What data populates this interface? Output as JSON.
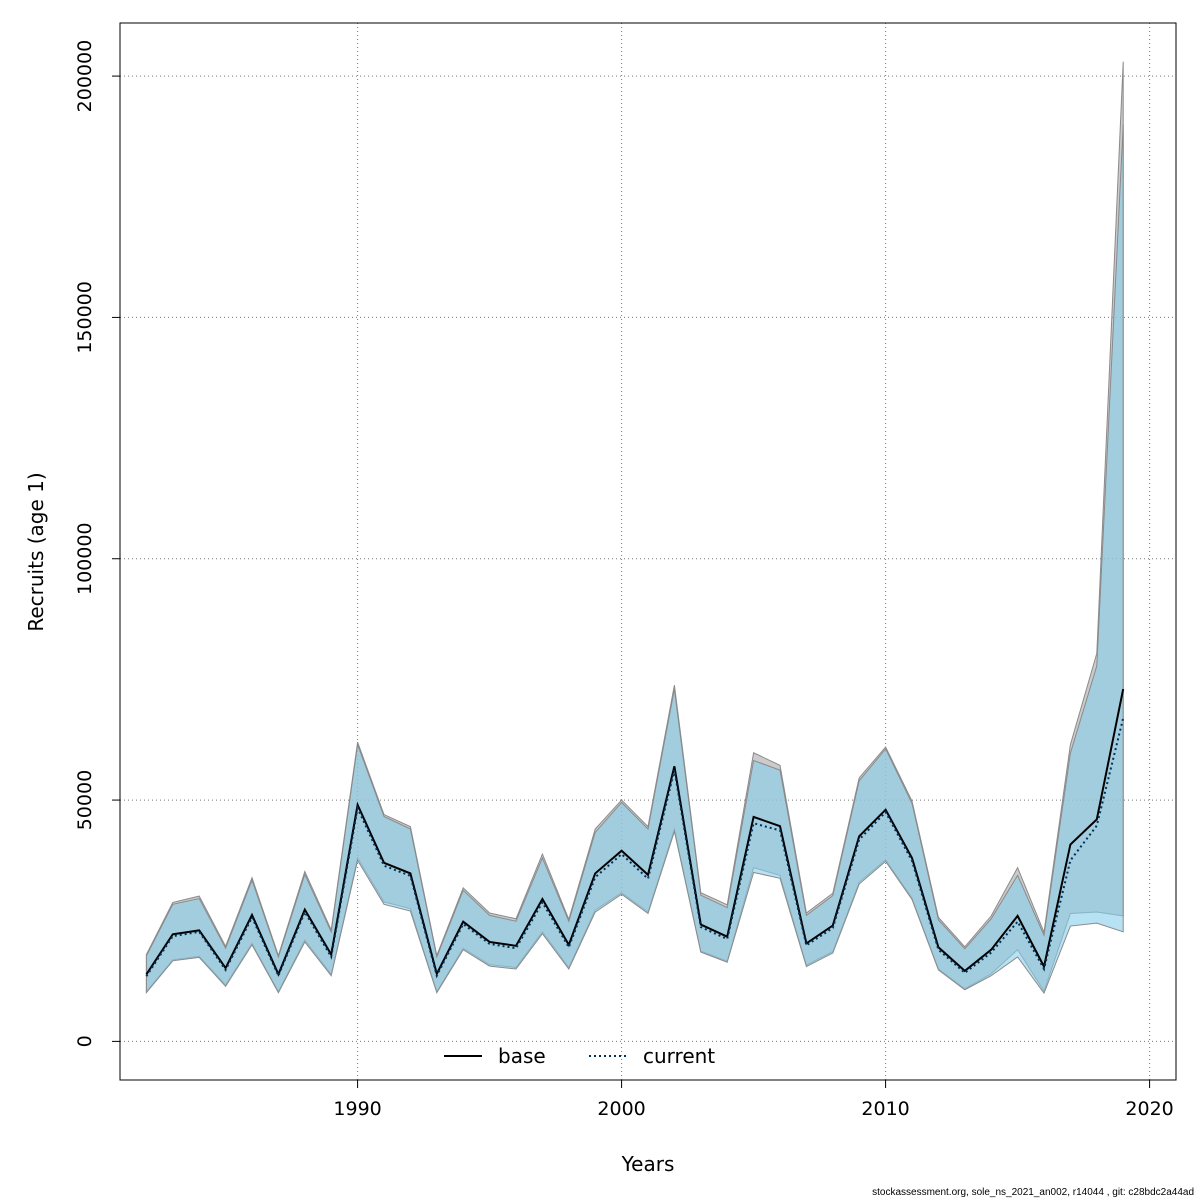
{
  "chart_data": {
    "type": "line",
    "xlabel": "Years",
    "ylabel": "Recruits (age 1)",
    "xlim": [
      1981,
      2021
    ],
    "ylim": [
      -8000,
      211000
    ],
    "xticks": [
      1990,
      2000,
      2010,
      2020
    ],
    "yticks": [
      0,
      50000,
      100000,
      150000,
      200000
    ],
    "grid": true,
    "legend_position": "bottom-center",
    "x": [
      1982,
      1983,
      1984,
      1985,
      1986,
      1987,
      1988,
      1989,
      1990,
      1991,
      1992,
      1993,
      1994,
      1995,
      1996,
      1997,
      1998,
      1999,
      2000,
      2001,
      2002,
      2003,
      2004,
      2005,
      2006,
      2007,
      2008,
      2009,
      2010,
      2011,
      2012,
      2013,
      2014,
      2015,
      2016,
      2017,
      2018,
      2019
    ],
    "series": [
      {
        "name": "base",
        "line_style": "solid",
        "line_color": "#000000",
        "band_color": "#a9a9a9",
        "values": [
          13900,
          22200,
          23000,
          15200,
          26200,
          13900,
          27300,
          18000,
          49000,
          37000,
          34800,
          14000,
          24800,
          20600,
          19800,
          29500,
          20000,
          34800,
          39500,
          34500,
          57000,
          24200,
          21700,
          46500,
          44600,
          20300,
          24000,
          42500,
          48000,
          38000,
          19500,
          14600,
          19000,
          26000,
          15500,
          40800,
          46000,
          73000
        ],
        "lower": [
          10300,
          16900,
          17600,
          11700,
          20300,
          10300,
          21000,
          13900,
          38000,
          28900,
          27500,
          10300,
          19300,
          15900,
          15300,
          22700,
          15300,
          27200,
          30800,
          26800,
          44000,
          18700,
          16600,
          36000,
          34400,
          15800,
          18600,
          33000,
          37600,
          29700,
          15000,
          10900,
          14000,
          19000,
          10400,
          26500,
          26800,
          26000
        ],
        "upper": [
          18000,
          28800,
          30100,
          19700,
          33900,
          17800,
          35200,
          23100,
          62000,
          47000,
          44500,
          17800,
          31800,
          26600,
          25400,
          38800,
          25300,
          44000,
          50000,
          44500,
          73800,
          30800,
          28300,
          59800,
          57200,
          26600,
          30700,
          54600,
          61000,
          49800,
          25700,
          19600,
          26000,
          36000,
          22600,
          61500,
          80400,
          203000
        ]
      },
      {
        "name": "current",
        "line_style": "dotted",
        "line_color": "#00305a",
        "band_color": "#87ceeb",
        "values": [
          13500,
          21800,
          22700,
          14800,
          25700,
          13600,
          26800,
          17500,
          48300,
          36400,
          34300,
          13600,
          24300,
          20200,
          19300,
          28800,
          19500,
          34000,
          38800,
          33700,
          56200,
          23700,
          21200,
          45200,
          43700,
          19900,
          23500,
          41800,
          47500,
          37400,
          19000,
          14200,
          18400,
          24800,
          15000,
          37500,
          44700,
          67000
        ],
        "lower": [
          10100,
          16700,
          17400,
          11400,
          20000,
          10100,
          20600,
          13600,
          37500,
          28400,
          27000,
          10100,
          19000,
          15600,
          15000,
          22300,
          15000,
          26800,
          30500,
          26500,
          43500,
          18500,
          16400,
          35000,
          33800,
          15500,
          18300,
          32600,
          37300,
          29400,
          14800,
          10700,
          13600,
          17500,
          10000,
          23900,
          24500,
          22700
        ],
        "upper": [
          17700,
          28400,
          29600,
          19300,
          33400,
          17500,
          34600,
          22700,
          61500,
          46600,
          44000,
          17500,
          31300,
          26100,
          24900,
          38000,
          24900,
          43300,
          49500,
          44000,
          73000,
          30300,
          27700,
          58200,
          56200,
          26100,
          30200,
          54000,
          60600,
          49300,
          25200,
          19200,
          25400,
          34400,
          22000,
          59700,
          77800,
          190000
        ]
      }
    ]
  },
  "footer_text": "stockassessment.org, sole_ns_2021_an002, r14044 , git: c28bdc2a44ad"
}
